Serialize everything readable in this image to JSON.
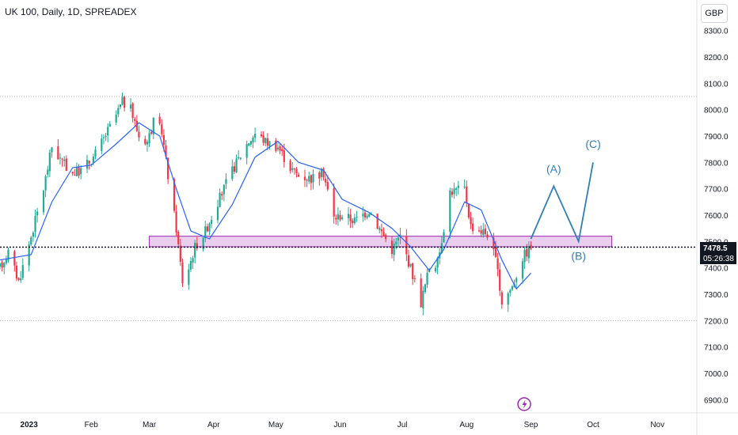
{
  "header": {
    "title": "UK 100, Daily, 1D, SPREADEX",
    "currency": "GBP"
  },
  "price_badge": {
    "price": "7478.5",
    "countdown": "05:26:38"
  },
  "chart_data": {
    "type": "candlestick",
    "symbol": "UK 100",
    "ylim": [
      6850,
      8350
    ],
    "y_ticks": [
      6900,
      7000,
      7100,
      7200,
      7300,
      7400,
      7500,
      7600,
      7700,
      7800,
      7900,
      8000,
      8100,
      8200,
      8300
    ],
    "y_tick_labels": [
      "6900.0",
      "7000.0",
      "7100.0",
      "7200.0",
      "7300.0",
      "7400.0",
      "7500.0",
      "7600.0",
      "7700.0",
      "7800.0",
      "7900.0",
      "8000.0",
      "8100.0",
      "8200.0",
      "8300.0"
    ],
    "x_range": [
      "2022-12-19",
      "2023-11-20"
    ],
    "x_ticks": [
      {
        "date": "2023-01-02",
        "label": "2023"
      },
      {
        "date": "2023-02-01",
        "label": "Feb"
      },
      {
        "date": "2023-03-01",
        "label": "Mar"
      },
      {
        "date": "2023-04-01",
        "label": "Apr"
      },
      {
        "date": "2023-05-01",
        "label": "May"
      },
      {
        "date": "2023-06-01",
        "label": "Jun"
      },
      {
        "date": "2023-07-01",
        "label": "Jul"
      },
      {
        "date": "2023-08-01",
        "label": "Aug"
      },
      {
        "date": "2023-09-01",
        "label": "Sep"
      },
      {
        "date": "2023-10-01",
        "label": "Oct"
      },
      {
        "date": "2023-11-01",
        "label": "Nov"
      }
    ],
    "price_path": [
      [
        "2022-12-19",
        7400
      ],
      [
        "2022-12-23",
        7460
      ],
      [
        "2022-12-28",
        7350
      ],
      [
        "2023-01-03",
        7520
      ],
      [
        "2023-01-09",
        7700
      ],
      [
        "2023-01-13",
        7860
      ],
      [
        "2023-01-18",
        7800
      ],
      [
        "2023-01-23",
        7760
      ],
      [
        "2023-01-27",
        7770
      ],
      [
        "2023-02-02",
        7820
      ],
      [
        "2023-02-07",
        7890
      ],
      [
        "2023-02-13",
        7980
      ],
      [
        "2023-02-16",
        8030
      ],
      [
        "2023-02-20",
        8000
      ],
      [
        "2023-02-24",
        7900
      ],
      [
        "2023-02-28",
        7880
      ],
      [
        "2023-03-03",
        7950
      ],
      [
        "2023-03-07",
        7920
      ],
      [
        "2023-03-10",
        7750
      ],
      [
        "2023-03-14",
        7550
      ],
      [
        "2023-03-17",
        7350
      ],
      [
        "2023-03-20",
        7400
      ],
      [
        "2023-03-23",
        7480
      ],
      [
        "2023-03-28",
        7540
      ],
      [
        "2023-04-03",
        7650
      ],
      [
        "2023-04-10",
        7770
      ],
      [
        "2023-04-17",
        7870
      ],
      [
        "2023-04-21",
        7910
      ],
      [
        "2023-04-26",
        7880
      ],
      [
        "2023-05-02",
        7860
      ],
      [
        "2023-05-08",
        7780
      ],
      [
        "2023-05-12",
        7750
      ],
      [
        "2023-05-18",
        7740
      ],
      [
        "2023-05-24",
        7760
      ],
      [
        "2023-05-29",
        7590
      ],
      [
        "2023-06-02",
        7600
      ],
      [
        "2023-06-08",
        7580
      ],
      [
        "2023-06-15",
        7620
      ],
      [
        "2023-06-20",
        7550
      ],
      [
        "2023-06-26",
        7470
      ],
      [
        "2023-06-30",
        7520
      ],
      [
        "2023-07-05",
        7400
      ],
      [
        "2023-07-10",
        7270
      ],
      [
        "2023-07-14",
        7400
      ],
      [
        "2023-07-18",
        7420
      ],
      [
        "2023-07-24",
        7690
      ],
      [
        "2023-07-31",
        7700
      ],
      [
        "2023-08-03",
        7560
      ],
      [
        "2023-08-08",
        7540
      ],
      [
        "2023-08-11",
        7530
      ],
      [
        "2023-08-15",
        7430
      ],
      [
        "2023-08-18",
        7270
      ],
      [
        "2023-08-23",
        7330
      ],
      [
        "2023-08-28",
        7440
      ],
      [
        "2023-09-01",
        7480
      ]
    ],
    "ma_path": [
      [
        "2022-12-19",
        7430
      ],
      [
        "2023-01-03",
        7450
      ],
      [
        "2023-01-13",
        7650
      ],
      [
        "2023-01-23",
        7780
      ],
      [
        "2023-02-01",
        7790
      ],
      [
        "2023-02-13",
        7870
      ],
      [
        "2023-02-24",
        7950
      ],
      [
        "2023-03-06",
        7900
      ],
      [
        "2023-03-14",
        7700
      ],
      [
        "2023-03-21",
        7540
      ],
      [
        "2023-03-30",
        7510
      ],
      [
        "2023-04-10",
        7640
      ],
      [
        "2023-04-21",
        7820
      ],
      [
        "2023-05-02",
        7880
      ],
      [
        "2023-05-12",
        7800
      ],
      [
        "2023-05-24",
        7770
      ],
      [
        "2023-06-02",
        7660
      ],
      [
        "2023-06-15",
        7610
      ],
      [
        "2023-06-26",
        7550
      ],
      [
        "2023-07-05",
        7480
      ],
      [
        "2023-07-14",
        7390
      ],
      [
        "2023-07-21",
        7470
      ],
      [
        "2023-07-31",
        7650
      ],
      [
        "2023-08-08",
        7620
      ],
      [
        "2023-08-18",
        7430
      ],
      [
        "2023-08-25",
        7320
      ],
      [
        "2023-09-01",
        7380
      ]
    ],
    "horizontal_lines": [
      {
        "price": 8050,
        "style": "dotted-gray"
      },
      {
        "price": 7200,
        "style": "dotted-gray"
      },
      {
        "price": 7478.5,
        "style": "dotted-black"
      }
    ],
    "zone": {
      "from": "2023-03-01",
      "to": "2023-10-10",
      "low": 7480,
      "high": 7520
    },
    "projection": {
      "points": [
        [
          "2023-09-01",
          7510
        ],
        [
          "2023-09-12",
          7710
        ],
        [
          "2023-09-24",
          7500
        ],
        [
          "2023-10-01",
          7800
        ]
      ],
      "labels": [
        {
          "text": "(A)",
          "date": "2023-09-12",
          "price": 7760
        },
        {
          "text": "(B)",
          "date": "2023-09-24",
          "price": 7430
        },
        {
          "text": "(C)",
          "date": "2023-10-01",
          "price": 7855
        }
      ]
    }
  }
}
